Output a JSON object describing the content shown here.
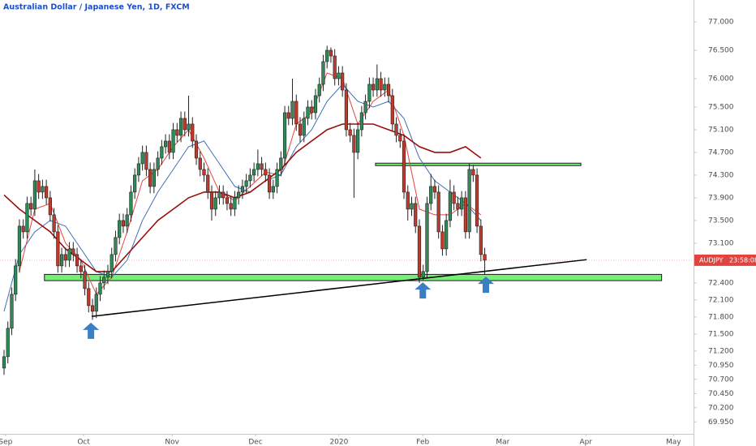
{
  "chart_data": {
    "type": "candlestick",
    "title": "Australian Dollar / Japanese Yen, 1D, FXCM",
    "x": [
      0,
      1,
      2,
      3,
      4,
      5,
      6,
      7,
      8,
      9,
      10,
      11,
      12,
      13,
      14,
      15,
      16,
      17,
      18,
      19,
      20,
      21,
      22,
      23,
      24,
      25,
      26,
      27,
      28,
      29,
      30,
      31,
      32,
      33,
      34,
      35,
      36,
      37,
      38,
      39,
      40,
      41,
      42,
      43,
      44,
      45,
      46,
      47,
      48,
      49,
      50,
      51,
      52,
      53,
      54,
      55,
      56,
      57,
      58,
      59,
      60,
      61,
      62,
      63,
      64,
      65,
      66,
      67,
      68,
      69,
      70,
      71,
      72,
      73,
      74,
      75,
      76,
      77,
      78,
      79,
      80,
      81,
      82,
      83,
      84,
      85,
      86,
      87,
      88,
      89,
      90,
      91,
      92,
      93,
      94,
      95,
      96,
      97,
      98,
      99,
      100,
      101,
      102,
      103,
      104,
      105,
      106,
      107,
      108,
      109,
      110,
      111,
      112,
      113,
      114,
      115,
      116,
      117,
      118,
      119,
      120,
      121,
      122,
      123,
      124,
      125
    ],
    "open": [
      70.9,
      71.1,
      71.6,
      72.2,
      72.7,
      73.4,
      73.3,
      73.8,
      73.7,
      74.2,
      74.0,
      74.1,
      73.9,
      73.6,
      73.3,
      72.7,
      72.9,
      72.8,
      73.0,
      72.9,
      72.7,
      72.6,
      72.3,
      72.0,
      71.9,
      72.2,
      72.4,
      72.5,
      72.6,
      72.9,
      73.2,
      73.5,
      73.4,
      73.6,
      74.0,
      74.3,
      74.5,
      74.7,
      74.4,
      74.1,
      74.4,
      74.6,
      74.8,
      74.9,
      74.7,
      75.1,
      75.0,
      75.3,
      75.1,
      75.2,
      74.9,
      74.6,
      74.4,
      74.3,
      74.0,
      73.7,
      73.9,
      74.0,
      73.9,
      73.8,
      73.7,
      73.9,
      74.0,
      74.1,
      74.2,
      74.3,
      74.4,
      74.5,
      74.4,
      74.3,
      74.0,
      74.1,
      74.4,
      74.6,
      75.4,
      75.3,
      75.6,
      75.2,
      75.0,
      75.3,
      75.5,
      75.4,
      75.7,
      75.9,
      76.3,
      76.5,
      76.4,
      76.0,
      76.1,
      75.8,
      75.1,
      75.0,
      74.7,
      75.1,
      75.4,
      75.6,
      75.9,
      75.8,
      76.0,
      75.8,
      75.9,
      75.7,
      75.2,
      75.0,
      74.9,
      74.0,
      73.7,
      73.8,
      73.4,
      72.5,
      72.6,
      73.8,
      74.1,
      74.0,
      73.3,
      73.0,
      73.5,
      74.0,
      73.8,
      73.7,
      73.9,
      73.3,
      74.4,
      74.3,
      73.4,
      72.9
    ],
    "high": [
      71.22,
      71.72,
      72.32,
      72.82,
      73.52,
      73.52,
      73.92,
      73.92,
      74.4,
      74.32,
      74.22,
      74.22,
      74.02,
      73.72,
      73.42,
      73.02,
      73.02,
      73.12,
      73.12,
      73.02,
      72.82,
      72.72,
      72.42,
      72.12,
      72.32,
      72.52,
      72.62,
      72.72,
      73.02,
      73.32,
      73.62,
      73.62,
      73.72,
      74.12,
      74.42,
      74.62,
      74.82,
      74.82,
      74.52,
      74.52,
      74.72,
      74.92,
      75.02,
      75.02,
      75.22,
      75.22,
      75.42,
      75.42,
      75.7,
      75.32,
      75.02,
      74.72,
      74.52,
      74.42,
      74.12,
      74.02,
      74.12,
      74.12,
      74.02,
      73.92,
      74.02,
      74.12,
      74.22,
      74.32,
      74.42,
      74.52,
      74.75,
      74.62,
      74.52,
      74.42,
      74.22,
      74.52,
      74.72,
      75.52,
      75.52,
      76.0,
      75.72,
      75.32,
      75.42,
      75.62,
      75.62,
      75.82,
      76.02,
      76.42,
      76.58,
      76.55,
      76.52,
      76.22,
      76.22,
      75.92,
      75.22,
      75.12,
      75.22,
      75.52,
      75.72,
      76.02,
      76.02,
      76.25,
      76.12,
      76.02,
      76.02,
      75.82,
      75.32,
      75.12,
      75.02,
      74.12,
      73.92,
      73.92,
      73.52,
      72.72,
      73.92,
      74.32,
      74.22,
      74.12,
      73.42,
      73.62,
      74.22,
      74.12,
      73.92,
      74.02,
      74.02,
      74.5,
      74.48,
      74.42,
      73.52,
      73.02
    ],
    "low": [
      70.78,
      70.98,
      71.48,
      72.08,
      72.58,
      73.18,
      73.18,
      73.58,
      73.58,
      73.88,
      73.88,
      73.78,
      73.48,
      73.18,
      72.58,
      72.58,
      72.68,
      72.68,
      72.78,
      72.58,
      72.48,
      72.18,
      71.88,
      71.75,
      71.78,
      72.08,
      72.28,
      72.38,
      72.48,
      72.78,
      73.08,
      73.28,
      73.28,
      73.48,
      73.88,
      74.18,
      74.38,
      74.28,
      73.98,
      73.98,
      74.28,
      74.48,
      74.68,
      74.58,
      74.58,
      74.88,
      74.88,
      74.98,
      74.98,
      74.78,
      74.48,
      74.28,
      74.18,
      73.88,
      73.5,
      73.58,
      73.78,
      73.78,
      73.68,
      73.58,
      73.58,
      73.78,
      73.88,
      73.98,
      74.08,
      74.18,
      74.28,
      74.28,
      74.18,
      73.88,
      73.88,
      73.98,
      74.28,
      74.48,
      75.18,
      75.18,
      75.08,
      74.88,
      74.88,
      75.18,
      75.28,
      75.28,
      75.58,
      75.78,
      76.18,
      76.28,
      75.88,
      75.88,
      75.68,
      74.98,
      74.88,
      73.9,
      74.58,
      74.98,
      75.28,
      75.48,
      75.68,
      75.68,
      75.68,
      75.68,
      75.58,
      75.08,
      74.88,
      74.78,
      73.88,
      73.5,
      73.58,
      73.28,
      72.4,
      72.45,
      72.48,
      73.68,
      73.88,
      73.18,
      72.88,
      72.88,
      73.38,
      73.68,
      73.58,
      73.58,
      73.18,
      73.18,
      74.18,
      73.28,
      72.78,
      72.55
    ],
    "close": [
      71.1,
      71.6,
      72.2,
      72.7,
      73.4,
      73.3,
      73.8,
      73.7,
      74.2,
      74.0,
      74.1,
      73.9,
      73.6,
      73.3,
      72.7,
      72.9,
      72.8,
      73.0,
      72.9,
      72.7,
      72.6,
      72.3,
      72.0,
      71.9,
      72.2,
      72.4,
      72.5,
      72.6,
      72.9,
      73.2,
      73.5,
      73.4,
      73.6,
      74.0,
      74.3,
      74.5,
      74.7,
      74.4,
      74.1,
      74.4,
      74.6,
      74.8,
      74.9,
      74.7,
      75.1,
      75.0,
      75.3,
      75.1,
      75.2,
      74.9,
      74.6,
      74.4,
      74.3,
      74.0,
      73.7,
      73.9,
      74.0,
      73.9,
      73.8,
      73.7,
      73.9,
      74.0,
      74.1,
      74.2,
      74.3,
      74.4,
      74.5,
      74.4,
      74.3,
      74.0,
      74.1,
      74.4,
      74.6,
      75.4,
      75.3,
      75.6,
      75.2,
      75.0,
      75.3,
      75.5,
      75.4,
      75.7,
      75.9,
      76.3,
      76.5,
      76.4,
      76.0,
      76.1,
      75.8,
      75.1,
      75.0,
      74.7,
      75.1,
      75.4,
      75.6,
      75.9,
      75.8,
      76.0,
      75.8,
      75.9,
      75.7,
      75.2,
      75.0,
      74.9,
      74.0,
      73.7,
      73.8,
      73.4,
      72.5,
      72.6,
      73.8,
      74.1,
      74.0,
      73.3,
      73.0,
      73.5,
      74.0,
      73.8,
      73.7,
      73.9,
      73.3,
      74.4,
      74.3,
      73.4,
      72.9,
      72.8
    ],
    "up_color": "#2e8b57",
    "down_color": "#c0392b",
    "indicators": [
      {
        "color": "#e8433a",
        "x": [
          4,
          8,
          12,
          16,
          20,
          24,
          28,
          32,
          36,
          40,
          44,
          48,
          52,
          56,
          60,
          64,
          68,
          72,
          76,
          80,
          84,
          88,
          92,
          96,
          100,
          104,
          108,
          112,
          116,
          120,
          124
        ],
        "values": [
          72.6,
          73.7,
          73.8,
          73.1,
          72.8,
          72.2,
          72.5,
          73.3,
          74.2,
          74.4,
          74.8,
          75.1,
          74.6,
          74.0,
          73.85,
          74.1,
          74.35,
          74.3,
          75.2,
          75.4,
          76.1,
          76.0,
          75.2,
          75.6,
          75.8,
          75.0,
          73.7,
          73.6,
          73.6,
          73.8,
          73.6
        ]
      },
      {
        "color": "#3d6fb6",
        "x": [
          0,
          4,
          8,
          12,
          16,
          20,
          24,
          28,
          32,
          36,
          40,
          44,
          48,
          52,
          56,
          60,
          64,
          68,
          72,
          76,
          80,
          84,
          88,
          92,
          96,
          100,
          104,
          108,
          112,
          116,
          120,
          124
        ],
        "values": [
          71.9,
          72.9,
          73.3,
          73.5,
          73.4,
          73.0,
          72.6,
          72.5,
          72.8,
          73.5,
          74.0,
          74.4,
          74.8,
          74.9,
          74.5,
          74.1,
          74.0,
          74.2,
          74.3,
          74.8,
          75.1,
          75.6,
          75.9,
          75.6,
          75.5,
          75.6,
          75.3,
          74.6,
          74.2,
          74.0,
          73.8,
          73.5
        ]
      },
      {
        "color": "#9b0d0d",
        "x": [
          0,
          4,
          8,
          12,
          16,
          20,
          24,
          28,
          32,
          36,
          40,
          44,
          48,
          52,
          56,
          60,
          64,
          68,
          72,
          76,
          80,
          84,
          88,
          92,
          96,
          100,
          104,
          108,
          112,
          116,
          120,
          124
        ],
        "values": [
          73.95,
          73.7,
          73.5,
          73.3,
          73.0,
          72.8,
          72.6,
          72.6,
          72.9,
          73.2,
          73.5,
          73.7,
          73.9,
          74.0,
          74.0,
          73.9,
          74.0,
          74.2,
          74.4,
          74.7,
          74.9,
          75.1,
          75.2,
          75.2,
          75.2,
          75.1,
          75.0,
          74.8,
          74.7,
          74.7,
          74.8,
          74.6
        ]
      }
    ],
    "zones": [
      {
        "x": [
          10.5,
          171
        ],
        "y": [
          72.44,
          72.55
        ],
        "color": "#77ee77"
      },
      {
        "x": [
          96.6,
          150
        ],
        "y": [
          74.47,
          74.51
        ],
        "color": "#77ee77"
      }
    ],
    "trendline": {
      "x": [
        22.8,
        151.5
      ],
      "y": [
        71.81,
        72.81
      ],
      "color": "#000000"
    },
    "arrows": {
      "color": "#3a7fc4",
      "x": [
        22.6,
        108.9,
        125.3
      ],
      "y": [
        71.7,
        72.41,
        72.51
      ]
    },
    "last_price": {
      "symbol": "AUDJPY",
      "countdown": "23:58:08",
      "value": 72.8,
      "color": "#e0443f"
    },
    "xlim": [
      -1.05,
      179.3
    ],
    "ylim": [
      69.74,
      77.386
    ],
    "xticks": [
      {
        "value": 0.4,
        "label": "Sep"
      },
      {
        "value": 20.7,
        "label": "Oct"
      },
      {
        "value": 43.7,
        "label": "Nov"
      },
      {
        "value": 65.4,
        "label": "Dec"
      },
      {
        "value": 87.1,
        "label": "2020"
      },
      {
        "value": 108.9,
        "label": "Feb"
      },
      {
        "value": 129.7,
        "label": "Mar"
      },
      {
        "value": 151.3,
        "label": "Apr"
      },
      {
        "value": 174.1,
        "label": "May"
      }
    ],
    "yticks": [
      {
        "value": 77,
        "label": "77.000"
      },
      {
        "value": 76.5,
        "label": "76.500"
      },
      {
        "value": 76,
        "label": "76.000"
      },
      {
        "value": 75.5,
        "label": "75.500"
      },
      {
        "value": 75.1,
        "label": "75.100"
      },
      {
        "value": 74.7,
        "label": "74.700"
      },
      {
        "value": 74.3,
        "label": "74.300"
      },
      {
        "value": 73.9,
        "label": "73.900"
      },
      {
        "value": 73.5,
        "label": "73.500"
      },
      {
        "value": 73.1,
        "label": "73.100"
      },
      {
        "value": 72.4,
        "label": "72.400"
      },
      {
        "value": 72.1,
        "label": "72.100"
      },
      {
        "value": 71.8,
        "label": "71.800"
      },
      {
        "value": 71.5,
        "label": "71.500"
      },
      {
        "value": 71.2,
        "label": "71.200"
      },
      {
        "value": 70.95,
        "label": "70.950"
      },
      {
        "value": 70.7,
        "label": "70.700"
      },
      {
        "value": 70.45,
        "label": "70.450"
      },
      {
        "value": 70.2,
        "label": "70.200"
      },
      {
        "value": 69.95,
        "label": "69.950"
      }
    ]
  }
}
